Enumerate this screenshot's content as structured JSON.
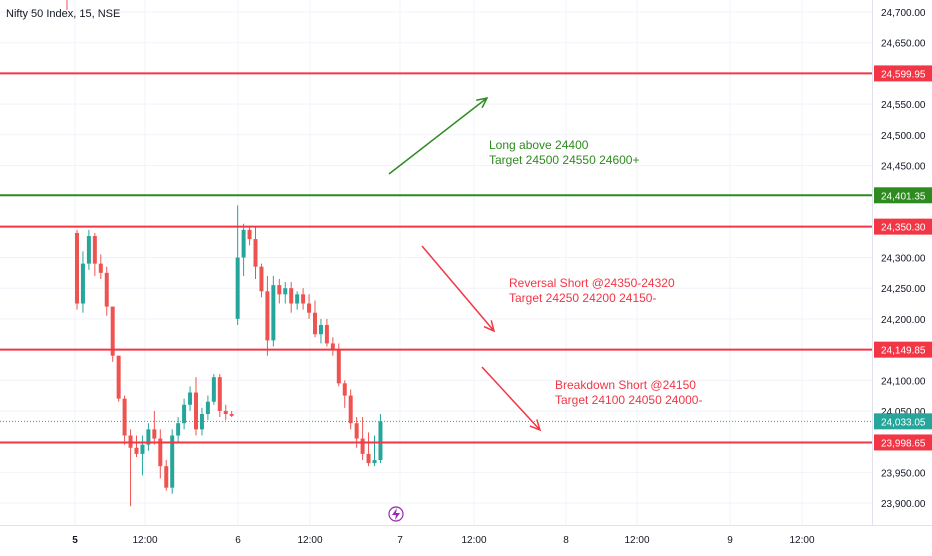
{
  "header": {
    "symbol_title": "Nifty 50 Index, 15, NSE"
  },
  "colors": {
    "up": "#26a69a",
    "down": "#ef5350",
    "red_line": "#f23645",
    "green_line": "#2e8b1f",
    "last_price_line": "#26a69a",
    "grid": "#f0f3fa",
    "axis_text": "#131722",
    "event_icon": "#9c27b0"
  },
  "chart_data": {
    "type": "candlestick",
    "symbol": "Nifty 50 Index",
    "interval": "15",
    "exchange": "NSE",
    "ylim": [
      23880,
      24725
    ],
    "y_ticks": [
      "24,700.00",
      "24,650.00",
      "24,600.00",
      "24,550.00",
      "24,500.00",
      "24,450.00",
      "24,400.00",
      "24,350.00",
      "24,300.00",
      "24,250.00",
      "24,200.00",
      "24,150.00",
      "24,100.00",
      "24,050.00",
      "24,000.00",
      "23,950.00",
      "23,900.00"
    ],
    "x_ticks": [
      "5",
      "12:00",
      "6",
      "12:00",
      "7",
      "12:00",
      "8",
      "12:00",
      "9",
      "12:00"
    ],
    "x_ticks_bold": [
      true,
      false,
      false,
      false,
      false,
      false,
      false,
      false,
      false,
      false
    ],
    "candles": [
      [
        24340,
        24345,
        24215,
        24225
      ],
      [
        24225,
        24310,
        24210,
        24290
      ],
      [
        24290,
        24345,
        24280,
        24335
      ],
      [
        24335,
        24340,
        24270,
        24290
      ],
      [
        24290,
        24305,
        24265,
        24275
      ],
      [
        24275,
        24285,
        24205,
        24220
      ],
      [
        24220,
        24220,
        24130,
        24140
      ],
      [
        24140,
        24140,
        24065,
        24070
      ],
      [
        24070,
        24075,
        23995,
        24010
      ],
      [
        24010,
        24020,
        23895,
        23990
      ],
      [
        23990,
        24010,
        23975,
        23980
      ],
      [
        23980,
        24010,
        23945,
        23995
      ],
      [
        23995,
        24030,
        23985,
        24020
      ],
      [
        24020,
        24050,
        23995,
        24005
      ],
      [
        24005,
        24020,
        23940,
        23960
      ],
      [
        23960,
        23970,
        23920,
        23925
      ],
      [
        23925,
        24020,
        23915,
        24010
      ],
      [
        24010,
        24040,
        24000,
        24030
      ],
      [
        24030,
        24070,
        24020,
        24060
      ],
      [
        24060,
        24090,
        24050,
        24080
      ],
      [
        24080,
        24105,
        24010,
        24020
      ],
      [
        24020,
        24055,
        24010,
        24045
      ],
      [
        24045,
        24075,
        24035,
        24065
      ],
      [
        24065,
        24110,
        24060,
        24105
      ],
      [
        24105,
        24110,
        24040,
        24050
      ],
      [
        24050,
        24060,
        24035,
        24045
      ],
      [
        24045,
        24050,
        24040,
        24042
      ],
      [
        24200,
        24385,
        24190,
        24300
      ],
      [
        24300,
        24355,
        24270,
        24345
      ],
      [
        24345,
        24350,
        24320,
        24330
      ],
      [
        24330,
        24350,
        24265,
        24285
      ],
      [
        24285,
        24290,
        24235,
        24245
      ],
      [
        24245,
        24270,
        24140,
        24165
      ],
      [
        24165,
        24270,
        24155,
        24255
      ],
      [
        24255,
        24265,
        24225,
        24240
      ],
      [
        24240,
        24260,
        24225,
        24250
      ],
      [
        24250,
        24260,
        24210,
        24225
      ],
      [
        24225,
        24245,
        24215,
        24240
      ],
      [
        24240,
        24250,
        24215,
        24225
      ],
      [
        24225,
        24240,
        24200,
        24210
      ],
      [
        24210,
        24230,
        24170,
        24175
      ],
      [
        24175,
        24200,
        24160,
        24190
      ],
      [
        24190,
        24200,
        24155,
        24160
      ],
      [
        24160,
        24170,
        24140,
        24150
      ],
      [
        24150,
        24160,
        24090,
        24095
      ],
      [
        24095,
        24100,
        24055,
        24075
      ],
      [
        24075,
        24085,
        24020,
        24030
      ],
      [
        24030,
        24040,
        23990,
        24005
      ],
      [
        24005,
        24040,
        23970,
        23980
      ],
      [
        23980,
        24015,
        23960,
        23965
      ],
      [
        23965,
        24010,
        23960,
        23970
      ],
      [
        23970,
        24045,
        23965,
        24033
      ]
    ],
    "horizontal_levels": [
      {
        "price": 24599.95,
        "label": "24,599.95",
        "color": "red"
      },
      {
        "price": 24401.35,
        "label": "24,401.35",
        "color": "green"
      },
      {
        "price": 24350.3,
        "label": "24,350.30",
        "color": "red"
      },
      {
        "price": 24149.85,
        "label": "24,149.85",
        "color": "red"
      },
      {
        "price": 23998.65,
        "label": "23,998.65",
        "color": "red"
      }
    ],
    "last_price": {
      "price": 24033.05,
      "label": "24,033.05"
    },
    "annotations": [
      {
        "lines": [
          "Long above 24400",
          "Target 24500 24550 24600+"
        ],
        "color": "green"
      },
      {
        "lines": [
          "Reversal Short @24350-24320",
          "Target 24250 24200 24150-"
        ],
        "color": "red"
      },
      {
        "lines": [
          "Breakdown Short @24150",
          "Target 24100 24050 24000-"
        ],
        "color": "red"
      }
    ]
  }
}
